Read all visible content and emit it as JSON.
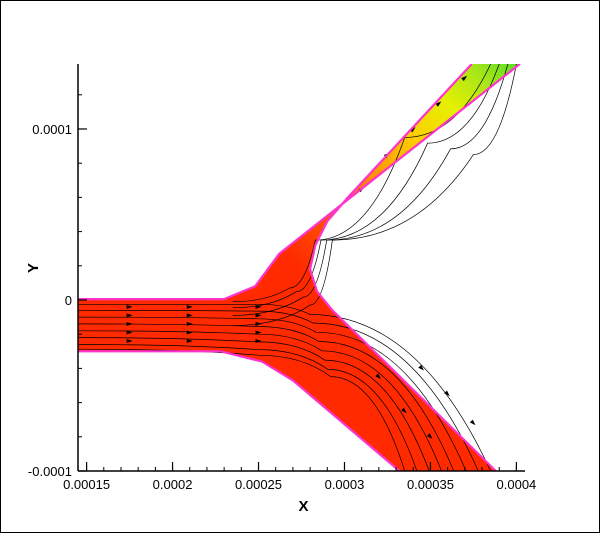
{
  "chart_data": {
    "type": "contour",
    "xlabel": "X",
    "ylabel": "Y",
    "xlim": [
      0.000145,
      0.000405
    ],
    "ylim": [
      -0.0001,
      0.000138
    ],
    "x_ticks": [
      {
        "value": 0.00015,
        "label": "0.00015"
      },
      {
        "value": 0.0002,
        "label": "0.0002"
      },
      {
        "value": 0.00025,
        "label": "0.00025"
      },
      {
        "value": 0.0003,
        "label": "0.0003"
      },
      {
        "value": 0.00035,
        "label": "0.00035"
      },
      {
        "value": 0.0004,
        "label": "0.0004"
      }
    ],
    "y_ticks": [
      {
        "value": -0.0001,
        "label": "-0.0001"
      },
      {
        "value": 0,
        "label": "0"
      },
      {
        "value": 0.0001,
        "label": "0.0001"
      }
    ],
    "x_minor_step": 1e-05,
    "y_minor_step": 2e-05,
    "channels": {
      "inlet": {
        "y_top": 5e-07,
        "y_bottom": -3e-05,
        "x_start": 0.000145,
        "x_end": 0.00023
      },
      "upper_branch": {
        "outer_wall": [
          [
            0.00023,
            5e-07
          ],
          [
            0.000248,
            8e-06
          ],
          [
            0.000262,
            2.7e-05
          ],
          [
            0.000402,
            0.000138
          ]
        ],
        "inner_wall": [
          [
            0.000272,
            0.000138
          ],
          [
            0.000316,
            0.000138
          ]
        ],
        "inner_wall_path": [
          [
            0.000374,
            0.000138
          ],
          [
            0.000302,
            6e-05
          ],
          [
            0.00029,
            4.6e-05
          ],
          [
            0.000283,
            3.2e-05
          ],
          [
            0.00028,
            1.8e-05
          ],
          [
            0.000284,
            5e-06
          ],
          [
            0.000293,
            -6e-06
          ]
        ]
      },
      "lower_branch": {
        "inner_wall_path": [
          [
            0.000293,
            -6e-06
          ],
          [
            0.000388,
            -0.0001
          ]
        ],
        "outer_wall_path": [
          [
            0.000145,
            -3e-05
          ],
          [
            0.000228,
            -3e-05
          ],
          [
            0.000252,
            -3.6e-05
          ],
          [
            0.00027,
            -4.7e-05
          ],
          [
            0.000332,
            -0.0001
          ]
        ]
      }
    },
    "colormap": "red-orange-yellow-green",
    "field_level_note": "Red throughout inlet and lower branch; upper branch grades from orange to yellow to green toward the top-right exit.",
    "wall_color": "#ff33cc",
    "fill_low_color": "#ff2a00",
    "fill_high_color": "#66dd22",
    "streamline_color": "#000000",
    "grid": false,
    "legend": "none"
  }
}
